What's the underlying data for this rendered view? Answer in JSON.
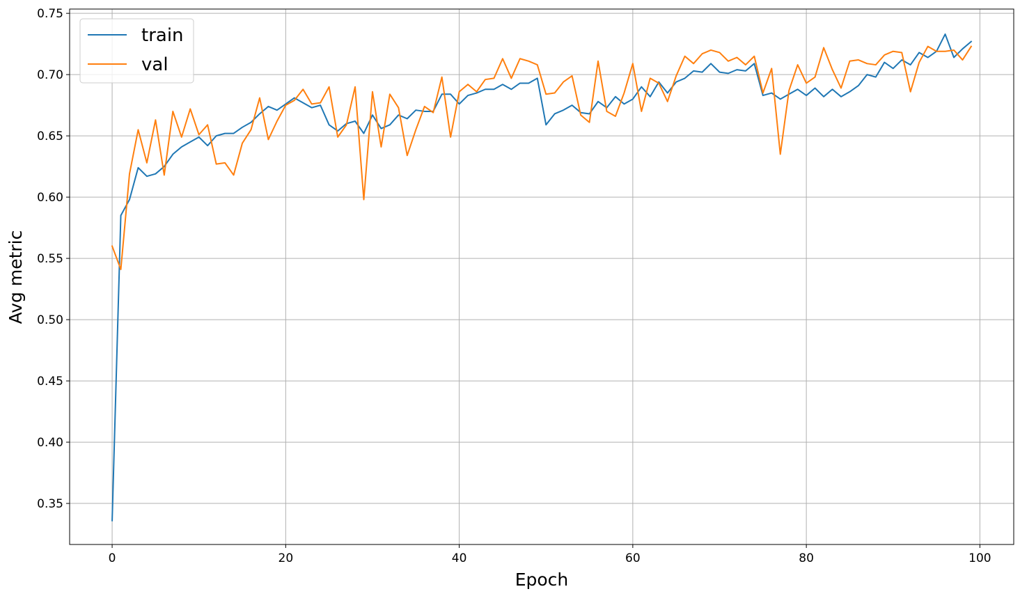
{
  "chart_data": {
    "type": "line",
    "title": "",
    "xlabel": "Epoch",
    "ylabel": "Avg metric",
    "xlim": [
      -4.9,
      103.9
    ],
    "ylim": [
      0.3165,
      0.7535
    ],
    "xticks": [
      0,
      20,
      40,
      60,
      80,
      100
    ],
    "xtick_labels": [
      "0",
      "20",
      "40",
      "60",
      "80",
      "100"
    ],
    "yticks": [
      0.35,
      0.4,
      0.45,
      0.5,
      0.55,
      0.6,
      0.65,
      0.7,
      0.75
    ],
    "ytick_labels": [
      "0.35",
      "0.40",
      "0.45",
      "0.50",
      "0.55",
      "0.60",
      "0.65",
      "0.70",
      "0.75"
    ],
    "grid": true,
    "legend_position": "top-left",
    "x": [
      0,
      1,
      2,
      3,
      4,
      5,
      6,
      7,
      8,
      9,
      10,
      11,
      12,
      13,
      14,
      15,
      16,
      17,
      18,
      19,
      20,
      21,
      22,
      23,
      24,
      25,
      26,
      27,
      28,
      29,
      30,
      31,
      32,
      33,
      34,
      35,
      36,
      37,
      38,
      39,
      40,
      41,
      42,
      43,
      44,
      45,
      46,
      47,
      48,
      49,
      50,
      51,
      52,
      53,
      54,
      55,
      56,
      57,
      58,
      59,
      60,
      61,
      62,
      63,
      64,
      65,
      66,
      67,
      68,
      69,
      70,
      71,
      72,
      73,
      74,
      75,
      76,
      77,
      78,
      79,
      80,
      81,
      82,
      83,
      84,
      85,
      86,
      87,
      88,
      89,
      90,
      91,
      92,
      93,
      94,
      95,
      96,
      97,
      98,
      99
    ],
    "series": [
      {
        "name": "train",
        "color": "#1f77b4",
        "values": [
          0.336,
          0.585,
          0.598,
          0.624,
          0.617,
          0.619,
          0.625,
          0.635,
          0.641,
          0.645,
          0.649,
          0.642,
          0.65,
          0.652,
          0.652,
          0.657,
          0.661,
          0.668,
          0.674,
          0.671,
          0.676,
          0.681,
          0.677,
          0.673,
          0.675,
          0.659,
          0.654,
          0.66,
          0.662,
          0.652,
          0.667,
          0.656,
          0.659,
          0.667,
          0.664,
          0.671,
          0.67,
          0.67,
          0.684,
          0.684,
          0.676,
          0.683,
          0.685,
          0.688,
          0.688,
          0.692,
          0.688,
          0.693,
          0.693,
          0.697,
          0.659,
          0.668,
          0.671,
          0.675,
          0.669,
          0.668,
          0.678,
          0.673,
          0.682,
          0.676,
          0.68,
          0.69,
          0.682,
          0.694,
          0.685,
          0.694,
          0.697,
          0.703,
          0.702,
          0.709,
          0.702,
          0.701,
          0.704,
          0.703,
          0.709,
          0.683,
          0.685,
          0.68,
          0.684,
          0.688,
          0.683,
          0.689,
          0.682,
          0.688,
          0.682,
          0.686,
          0.691,
          0.7,
          0.698,
          0.71,
          0.705,
          0.712,
          0.708,
          0.718,
          0.714,
          0.719,
          0.733,
          0.714,
          0.721,
          0.727
        ]
      },
      {
        "name": "val",
        "color": "#ff7f0e",
        "values": [
          0.56,
          0.541,
          0.619,
          0.655,
          0.628,
          0.663,
          0.618,
          0.67,
          0.649,
          0.672,
          0.651,
          0.659,
          0.627,
          0.628,
          0.618,
          0.644,
          0.655,
          0.681,
          0.647,
          0.662,
          0.675,
          0.679,
          0.688,
          0.676,
          0.677,
          0.69,
          0.649,
          0.659,
          0.69,
          0.598,
          0.686,
          0.641,
          0.684,
          0.673,
          0.634,
          0.655,
          0.674,
          0.669,
          0.698,
          0.649,
          0.686,
          0.692,
          0.686,
          0.696,
          0.697,
          0.713,
          0.697,
          0.713,
          0.711,
          0.708,
          0.684,
          0.685,
          0.694,
          0.699,
          0.667,
          0.661,
          0.711,
          0.67,
          0.666,
          0.685,
          0.709,
          0.67,
          0.697,
          0.693,
          0.678,
          0.699,
          0.715,
          0.709,
          0.717,
          0.72,
          0.718,
          0.711,
          0.714,
          0.708,
          0.715,
          0.685,
          0.705,
          0.635,
          0.687,
          0.708,
          0.693,
          0.698,
          0.722,
          0.704,
          0.689,
          0.711,
          0.712,
          0.709,
          0.708,
          0.716,
          0.719,
          0.718,
          0.686,
          0.71,
          0.723,
          0.719,
          0.719,
          0.72,
          0.712,
          0.723
        ]
      }
    ]
  }
}
